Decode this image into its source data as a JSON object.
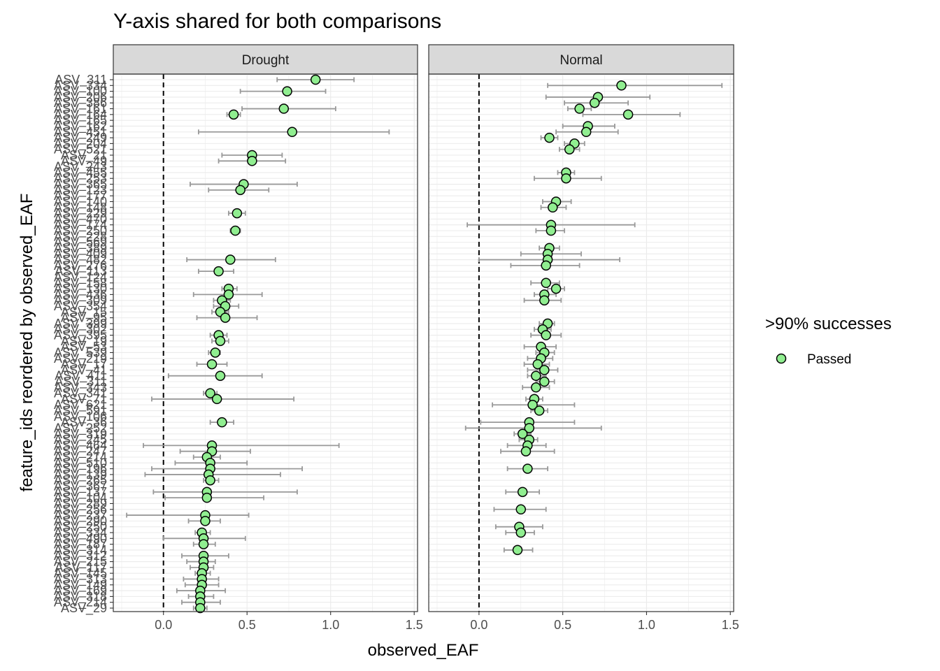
{
  "chart_data": {
    "type": "scatter",
    "title": "Y-axis shared for both comparisons",
    "xlabel": "observed_EAF",
    "ylabel": "feature_ids reordered by observed_EAF",
    "xlim": [
      -0.3,
      1.52
    ],
    "x_ticks": [
      "0.0",
      "0.5",
      "1.0",
      "1.5"
    ],
    "x_tick_values": [
      0,
      0.5,
      1.0,
      1.5
    ],
    "reference_line_x": 0,
    "grid": true,
    "legend": {
      "title": ">90% successes",
      "position": "right",
      "entries": [
        {
          "label": "Passed",
          "color": "#90EE90"
        }
      ]
    },
    "colors": {
      "point_fill": "#90EE90",
      "point_stroke": "#000000",
      "errorbar": "#999999",
      "strip_bg": "#d9d9d9",
      "grid": "#ebebeb"
    },
    "categories": [
      "ASV_311",
      "ASV_334",
      "ASV_100",
      "ASV_206",
      "ASV_386",
      "ASV_161",
      "ASV_164",
      "ASV_165",
      "ASV_162",
      "ASV_451",
      "ASV_249",
      "ASV_204",
      "ASV_521",
      "ASV_21",
      "ASV_49",
      "ASV_243",
      "ASV_455",
      "ASV_253",
      "ASV_365",
      "ASV_123",
      "ASV_177",
      "ASV_140",
      "ASV_148",
      "ASV_229",
      "ASV_470",
      "ASV_174",
      "ASV_250",
      "ASV_228",
      "ASV_569",
      "ASV_389",
      "ASV_409",
      "ASV_482",
      "ASV_276",
      "ASV_113",
      "ASV_124",
      "ASV_158",
      "ASV_130",
      "ASV_436",
      "ASV_309",
      "ASV_354",
      "ASV_15",
      "ASV_95",
      "ASV_399",
      "ASV_302",
      "ASV_395",
      "ASV_19",
      "ASV_53",
      "ASV_539",
      "ASV_219",
      "ASV_17",
      "ASV_41",
      "ASV_411",
      "ASV_311b",
      "ASV_343",
      "ASV_341",
      "ASV_71",
      "ASV_621",
      "ASV_591",
      "ASV_106",
      "ASV_36",
      "ASV_252",
      "ASV_319",
      "ASV_245",
      "ASV_464",
      "ASV_247",
      "ASV_214",
      "ASV_510",
      "ASV_196",
      "ASV_139",
      "ASV_265",
      "ASV_367",
      "ASV_137",
      "ASV_104",
      "ASV_289",
      "ASV_256",
      "ASV_237",
      "ASV_290",
      "ASV_250b",
      "ASV_334b",
      "ASV_490",
      "ASV_187",
      "ASV_314",
      "ASV_312",
      "ASV_215",
      "ASV_117",
      "ASV_145",
      "ASV_313",
      "ASV_149",
      "ASV_169",
      "ASV_318",
      "ASV_214b",
      "ASV_29"
    ],
    "y_tick_labels": [
      "ASV_311",
      "ASV_334",
      "ASV_100",
      "ASV_206",
      "ASV_386",
      "ASV_161",
      "ASV_164",
      "ASV_165",
      "ASV_162",
      "ASV_451",
      "ASV_249",
      "ASV_204",
      "ASV_521",
      "ASV_21",
      "ASV_49",
      "ASV_243",
      "ASV_455",
      "ASV_253",
      "ASV_365",
      "ASV_123",
      "ASV_177",
      "ASV_140",
      "ASV_148",
      "ASV_229",
      "ASV_470",
      "ASV_174",
      "ASV_250",
      "ASV_228",
      "ASV_569",
      "ASV_389",
      "ASV_409",
      "ASV_482",
      "ASV_276",
      "ASV_113",
      "ASV_124",
      "ASV_158",
      "ASV_130",
      "ASV_436",
      "ASV_309",
      "ASV_354",
      "ASV_15",
      "ASV_95",
      "ASV_399",
      "ASV_302",
      "ASV_395",
      "ASV_19",
      "ASV_53",
      "ASV_539",
      "ASV_219",
      "ASV_17",
      "ASV_41",
      "ASV_411",
      "ASV_311",
      "ASV_343",
      "ASV_341",
      "ASV_71",
      "ASV_621",
      "ASV_591",
      "ASV_106",
      "ASV_36",
      "ASV_252",
      "ASV_319",
      "ASV_245",
      "ASV_464",
      "ASV_247",
      "ASV_214",
      "ASV_510",
      "ASV_196",
      "ASV_139",
      "ASV_265",
      "ASV_367",
      "ASV_137",
      "ASV_104",
      "ASV_289",
      "ASV_256",
      "ASV_237",
      "ASV_290",
      "ASV_250",
      "ASV_334",
      "ASV_490",
      "ASV_187",
      "ASV_314",
      "ASV_312",
      "ASV_215",
      "ASV_117",
      "ASV_145",
      "ASV_313",
      "ASV_149",
      "ASV_169",
      "ASV_318",
      "ASV_214",
      "ASV_29"
    ],
    "panels": [
      {
        "name": "Drought",
        "points": [
          {
            "i": 0,
            "x": 0.91,
            "lo": 0.68,
            "hi": 1.14
          },
          {
            "i": 2,
            "x": 0.74,
            "lo": 0.46,
            "hi": 0.97
          },
          {
            "i": 5,
            "x": 0.72,
            "lo": 0.47,
            "hi": 1.03
          },
          {
            "i": 6,
            "x": 0.42,
            "lo": 0.38,
            "hi": 0.46
          },
          {
            "i": 9,
            "x": 0.77,
            "lo": 0.21,
            "hi": 1.35
          },
          {
            "i": 13,
            "x": 0.53,
            "lo": 0.35,
            "hi": 0.71
          },
          {
            "i": 14,
            "x": 0.53,
            "lo": 0.33,
            "hi": 0.73
          },
          {
            "i": 18,
            "x": 0.48,
            "lo": 0.16,
            "hi": 0.8
          },
          {
            "i": 19,
            "x": 0.46,
            "lo": 0.27,
            "hi": 0.63
          },
          {
            "i": 23,
            "x": 0.44,
            "lo": 0.39,
            "hi": 0.49
          },
          {
            "i": 26,
            "x": 0.43,
            "lo": 0.4,
            "hi": 0.46
          },
          {
            "i": 31,
            "x": 0.4,
            "lo": 0.14,
            "hi": 0.67
          },
          {
            "i": 33,
            "x": 0.33,
            "lo": 0.21,
            "hi": 0.42
          },
          {
            "i": 36,
            "x": 0.39,
            "lo": 0.35,
            "hi": 0.44
          },
          {
            "i": 37,
            "x": 0.39,
            "lo": 0.18,
            "hi": 0.59
          },
          {
            "i": 38,
            "x": 0.35,
            "lo": 0.3,
            "hi": 0.4
          },
          {
            "i": 39,
            "x": 0.37,
            "lo": 0.3,
            "hi": 0.45
          },
          {
            "i": 40,
            "x": 0.34,
            "lo": 0.29,
            "hi": 0.39
          },
          {
            "i": 41,
            "x": 0.37,
            "lo": 0.2,
            "hi": 0.56
          },
          {
            "i": 44,
            "x": 0.33,
            "lo": 0.28,
            "hi": 0.38
          },
          {
            "i": 45,
            "x": 0.34,
            "lo": 0.29,
            "hi": 0.39
          },
          {
            "i": 47,
            "x": 0.31,
            "lo": 0.27,
            "hi": 0.34
          },
          {
            "i": 49,
            "x": 0.29,
            "lo": 0.2,
            "hi": 0.38
          },
          {
            "i": 51,
            "x": 0.34,
            "lo": 0.03,
            "hi": 0.59
          },
          {
            "i": 54,
            "x": 0.28,
            "lo": 0.24,
            "hi": 0.32
          },
          {
            "i": 55,
            "x": 0.32,
            "lo": -0.07,
            "hi": 0.78
          },
          {
            "i": 59,
            "x": 0.35,
            "lo": 0.28,
            "hi": 0.42
          },
          {
            "i": 63,
            "x": 0.29,
            "lo": -0.12,
            "hi": 1.05
          },
          {
            "i": 64,
            "x": 0.29,
            "lo": 0.1,
            "hi": 0.52
          },
          {
            "i": 65,
            "x": 0.26,
            "lo": 0.18,
            "hi": 0.34
          },
          {
            "i": 66,
            "x": 0.28,
            "lo": 0.07,
            "hi": 0.5
          },
          {
            "i": 67,
            "x": 0.28,
            "lo": -0.07,
            "hi": 0.83
          },
          {
            "i": 68,
            "x": 0.27,
            "lo": -0.11,
            "hi": 0.7
          },
          {
            "i": 69,
            "x": 0.28,
            "lo": 0.24,
            "hi": 0.33
          },
          {
            "i": 71,
            "x": 0.26,
            "lo": -0.06,
            "hi": 0.8
          },
          {
            "i": 72,
            "x": 0.26,
            "lo": 0.01,
            "hi": 0.6
          },
          {
            "i": 75,
            "x": 0.25,
            "lo": -0.22,
            "hi": 0.51
          },
          {
            "i": 76,
            "x": 0.25,
            "lo": 0.15,
            "hi": 0.34
          },
          {
            "i": 78,
            "x": 0.23,
            "lo": 0.19,
            "hi": 0.28
          },
          {
            "i": 79,
            "x": 0.24,
            "lo": 0.0,
            "hi": 0.49
          },
          {
            "i": 80,
            "x": 0.24,
            "lo": 0.18,
            "hi": 0.31
          },
          {
            "i": 82,
            "x": 0.24,
            "lo": 0.11,
            "hi": 0.39
          },
          {
            "i": 83,
            "x": 0.24,
            "lo": 0.14,
            "hi": 0.31
          },
          {
            "i": 84,
            "x": 0.24,
            "lo": 0.16,
            "hi": 0.3
          },
          {
            "i": 85,
            "x": 0.23,
            "lo": 0.19,
            "hi": 0.28
          },
          {
            "i": 86,
            "x": 0.23,
            "lo": 0.12,
            "hi": 0.33
          },
          {
            "i": 87,
            "x": 0.23,
            "lo": 0.13,
            "hi": 0.33
          },
          {
            "i": 88,
            "x": 0.22,
            "lo": 0.08,
            "hi": 0.37
          },
          {
            "i": 89,
            "x": 0.22,
            "lo": 0.15,
            "hi": 0.3
          },
          {
            "i": 90,
            "x": 0.22,
            "lo": 0.11,
            "hi": 0.34
          },
          {
            "i": 91,
            "x": 0.22,
            "lo": 0.18,
            "hi": 0.26
          }
        ]
      },
      {
        "name": "Normal",
        "points": [
          {
            "i": 1,
            "x": 0.85,
            "lo": 0.41,
            "hi": 1.45
          },
          {
            "i": 3,
            "x": 0.71,
            "lo": 0.4,
            "hi": 1.02
          },
          {
            "i": 4,
            "x": 0.69,
            "lo": 0.51,
            "hi": 0.89
          },
          {
            "i": 5,
            "x": 0.6,
            "lo": 0.53,
            "hi": 0.67
          },
          {
            "i": 6,
            "x": 0.89,
            "lo": 0.62,
            "hi": 1.2
          },
          {
            "i": 8,
            "x": 0.65,
            "lo": 0.5,
            "hi": 0.81
          },
          {
            "i": 9,
            "x": 0.64,
            "lo": 0.46,
            "hi": 0.83
          },
          {
            "i": 10,
            "x": 0.42,
            "lo": 0.37,
            "hi": 0.47
          },
          {
            "i": 11,
            "x": 0.57,
            "lo": 0.51,
            "hi": 0.63
          },
          {
            "i": 12,
            "x": 0.54,
            "lo": 0.48,
            "hi": 0.6
          },
          {
            "i": 16,
            "x": 0.52,
            "lo": 0.47,
            "hi": 0.57
          },
          {
            "i": 17,
            "x": 0.52,
            "lo": 0.33,
            "hi": 0.73
          },
          {
            "i": 21,
            "x": 0.46,
            "lo": 0.38,
            "hi": 0.55
          },
          {
            "i": 22,
            "x": 0.44,
            "lo": 0.37,
            "hi": 0.52
          },
          {
            "i": 25,
            "x": 0.43,
            "lo": -0.07,
            "hi": 0.93
          },
          {
            "i": 26,
            "x": 0.43,
            "lo": 0.34,
            "hi": 0.51
          },
          {
            "i": 29,
            "x": 0.42,
            "lo": 0.36,
            "hi": 0.48
          },
          {
            "i": 30,
            "x": 0.41,
            "lo": 0.25,
            "hi": 0.61
          },
          {
            "i": 31,
            "x": 0.41,
            "lo": 0.0,
            "hi": 0.84
          },
          {
            "i": 32,
            "x": 0.4,
            "lo": 0.19,
            "hi": 0.6
          },
          {
            "i": 35,
            "x": 0.4,
            "lo": 0.31,
            "hi": 0.48
          },
          {
            "i": 36,
            "x": 0.46,
            "lo": 0.41,
            "hi": 0.51
          },
          {
            "i": 37,
            "x": 0.39,
            "lo": 0.33,
            "hi": 0.46
          },
          {
            "i": 38,
            "x": 0.39,
            "lo": 0.27,
            "hi": 0.49
          },
          {
            "i": 42,
            "x": 0.41,
            "lo": 0.36,
            "hi": 0.45
          },
          {
            "i": 43,
            "x": 0.38,
            "lo": 0.33,
            "hi": 0.43
          },
          {
            "i": 44,
            "x": 0.4,
            "lo": 0.31,
            "hi": 0.49
          },
          {
            "i": 46,
            "x": 0.37,
            "lo": 0.27,
            "hi": 0.46
          },
          {
            "i": 47,
            "x": 0.39,
            "lo": 0.34,
            "hi": 0.45
          },
          {
            "i": 48,
            "x": 0.37,
            "lo": 0.29,
            "hi": 0.44
          },
          {
            "i": 49,
            "x": 0.35,
            "lo": 0.27,
            "hi": 0.42
          },
          {
            "i": 50,
            "x": 0.39,
            "lo": 0.29,
            "hi": 0.47
          },
          {
            "i": 51,
            "x": 0.34,
            "lo": 0.29,
            "hi": 0.4
          },
          {
            "i": 52,
            "x": 0.39,
            "lo": 0.34,
            "hi": 0.45
          },
          {
            "i": 53,
            "x": 0.34,
            "lo": 0.26,
            "hi": 0.42
          },
          {
            "i": 55,
            "x": 0.33,
            "lo": 0.28,
            "hi": 0.38
          },
          {
            "i": 56,
            "x": 0.32,
            "lo": 0.08,
            "hi": 0.57
          },
          {
            "i": 57,
            "x": 0.36,
            "lo": 0.31,
            "hi": 0.41
          },
          {
            "i": 59,
            "x": 0.3,
            "lo": 0.01,
            "hi": 0.57
          },
          {
            "i": 60,
            "x": 0.3,
            "lo": -0.08,
            "hi": 0.73
          },
          {
            "i": 61,
            "x": 0.26,
            "lo": 0.21,
            "hi": 0.31
          },
          {
            "i": 62,
            "x": 0.3,
            "lo": 0.24,
            "hi": 0.35
          },
          {
            "i": 63,
            "x": 0.29,
            "lo": 0.17,
            "hi": 0.4
          },
          {
            "i": 64,
            "x": 0.28,
            "lo": 0.13,
            "hi": 0.45
          },
          {
            "i": 67,
            "x": 0.29,
            "lo": 0.17,
            "hi": 0.41
          },
          {
            "i": 71,
            "x": 0.26,
            "lo": 0.16,
            "hi": 0.36
          },
          {
            "i": 74,
            "x": 0.25,
            "lo": 0.09,
            "hi": 0.4
          },
          {
            "i": 77,
            "x": 0.24,
            "lo": 0.1,
            "hi": 0.38
          },
          {
            "i": 78,
            "x": 0.25,
            "lo": 0.16,
            "hi": 0.33
          },
          {
            "i": 81,
            "x": 0.23,
            "lo": 0.15,
            "hi": 0.32
          }
        ]
      }
    ]
  }
}
